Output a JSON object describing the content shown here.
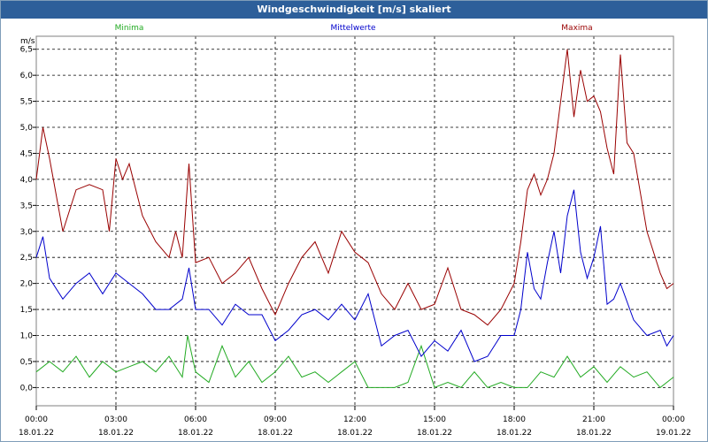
{
  "window": {
    "title": "Windgeschwindigkeit [m/s] skaliert"
  },
  "legend": {
    "min_label": "Minima",
    "mean_label": "Mittelwerte",
    "max_label": "Maxima"
  },
  "colors": {
    "min": "#22aa22",
    "mean": "#0000cc",
    "max": "#990000",
    "grid": "#000000",
    "frame": "#7f9db9",
    "title_bg": "#2d5f9a"
  },
  "chart_data": {
    "type": "line",
    "title": "Windgeschwindigkeit [m/s] skaliert",
    "ylabel": "m/s",
    "xlabel": "",
    "ylim": [
      -0.35,
      6.75
    ],
    "xlim": [
      0,
      24
    ],
    "yticks": [
      "0,0",
      "0,5",
      "1,0",
      "1,5",
      "2,0",
      "2,5",
      "3,0",
      "3,5",
      "4,0",
      "4,5",
      "5,0",
      "5,5",
      "6,0",
      "6,5"
    ],
    "ytick_values": [
      0,
      0.5,
      1,
      1.5,
      2,
      2.5,
      3,
      3.5,
      4,
      4.5,
      5,
      5.5,
      6,
      6.5
    ],
    "xticks_time": [
      "00:00",
      "03:00",
      "06:00",
      "09:00",
      "12:00",
      "15:00",
      "18:00",
      "21:00",
      "00:00"
    ],
    "xticks_date": [
      "18.01.22",
      "18.01.22",
      "18.01.22",
      "18.01.22",
      "18.01.22",
      "18.01.22",
      "18.01.22",
      "18.01.22",
      "19.01.22"
    ],
    "grid": true,
    "legend_position": "top",
    "series": [
      {
        "name": "Minima",
        "color": "#22aa22",
        "x": [
          0,
          0.5,
          1,
          1.5,
          2,
          2.5,
          3,
          3.5,
          4,
          4.5,
          5,
          5.5,
          5.7,
          6,
          6.5,
          7,
          7.5,
          8,
          8.5,
          9,
          9.5,
          10,
          10.5,
          11,
          11.5,
          12,
          12.5,
          13,
          13.5,
          14,
          14.5,
          15,
          15.5,
          16,
          16.5,
          17,
          17.5,
          18,
          18.5,
          19,
          19.5,
          20,
          20.5,
          21,
          21.5,
          22,
          22.5,
          23,
          23.5,
          24
        ],
        "values": [
          0.3,
          0.5,
          0.3,
          0.6,
          0.2,
          0.5,
          0.3,
          0.4,
          0.5,
          0.3,
          0.6,
          0.2,
          1.0,
          0.3,
          0.1,
          0.8,
          0.2,
          0.5,
          0.1,
          0.3,
          0.6,
          0.2,
          0.3,
          0.1,
          0.3,
          0.5,
          0.0,
          0.0,
          0.0,
          0.1,
          0.8,
          0.0,
          0.1,
          0.0,
          0.3,
          0.0,
          0.1,
          0.0,
          0.0,
          0.3,
          0.2,
          0.6,
          0.2,
          0.4,
          0.1,
          0.4,
          0.2,
          0.3,
          0.0,
          0.2
        ]
      },
      {
        "name": "Mittelwerte",
        "color": "#0000cc",
        "x": [
          0,
          0.25,
          0.5,
          1,
          1.5,
          2,
          2.5,
          3,
          3.5,
          4,
          4.5,
          5,
          5.5,
          5.75,
          6,
          6.5,
          7,
          7.5,
          8,
          8.5,
          9,
          9.5,
          10,
          10.5,
          11,
          11.5,
          12,
          12.5,
          13,
          13.5,
          14,
          14.5,
          15,
          15.5,
          16,
          16.5,
          17,
          17.5,
          18,
          18.25,
          18.5,
          18.75,
          19,
          19.25,
          19.5,
          19.75,
          20,
          20.25,
          20.5,
          20.75,
          21,
          21.25,
          21.5,
          21.75,
          22,
          22.5,
          23,
          23.5,
          23.75,
          24
        ],
        "values": [
          2.5,
          2.9,
          2.1,
          1.7,
          2.0,
          2.2,
          1.8,
          2.2,
          2.0,
          1.8,
          1.5,
          1.5,
          1.7,
          2.3,
          1.5,
          1.5,
          1.2,
          1.6,
          1.4,
          1.4,
          0.9,
          1.1,
          1.4,
          1.5,
          1.3,
          1.6,
          1.3,
          1.8,
          0.8,
          1.0,
          1.1,
          0.6,
          0.9,
          0.7,
          1.1,
          0.5,
          0.6,
          1.0,
          1.0,
          1.5,
          2.6,
          1.9,
          1.7,
          2.4,
          3.0,
          2.2,
          3.3,
          3.8,
          2.6,
          2.1,
          2.5,
          3.1,
          1.6,
          1.7,
          2.0,
          1.3,
          1.0,
          1.1,
          0.8,
          1.0
        ]
      },
      {
        "name": "Maxima",
        "color": "#990000",
        "x": [
          0,
          0.25,
          0.5,
          1,
          1.5,
          2,
          2.5,
          2.75,
          3,
          3.25,
          3.5,
          4,
          4.5,
          5,
          5.25,
          5.5,
          5.75,
          6,
          6.5,
          7,
          7.5,
          8,
          8.5,
          9,
          9.5,
          10,
          10.5,
          11,
          11.5,
          12,
          12.5,
          13,
          13.5,
          14,
          14.5,
          15,
          15.5,
          16,
          16.5,
          17,
          17.5,
          18,
          18.25,
          18.5,
          18.75,
          19,
          19.25,
          19.5,
          19.75,
          20,
          20.25,
          20.5,
          20.75,
          21,
          21.25,
          21.5,
          21.75,
          22,
          22.25,
          22.5,
          23,
          23.5,
          23.75,
          24
        ],
        "values": [
          4.0,
          5.0,
          4.4,
          3.0,
          3.8,
          3.9,
          3.8,
          3.0,
          4.4,
          4.0,
          4.3,
          3.3,
          2.8,
          2.5,
          3.0,
          2.5,
          4.3,
          2.4,
          2.5,
          2.0,
          2.2,
          2.5,
          1.9,
          1.4,
          2.0,
          2.5,
          2.8,
          2.2,
          3.0,
          2.6,
          2.4,
          1.8,
          1.5,
          2.0,
          1.5,
          1.6,
          2.3,
          1.5,
          1.4,
          1.2,
          1.5,
          2.0,
          2.8,
          3.8,
          4.1,
          3.7,
          4.0,
          4.5,
          5.5,
          6.5,
          5.2,
          6.1,
          5.5,
          5.6,
          5.3,
          4.6,
          4.1,
          6.4,
          4.7,
          4.5,
          3.0,
          2.2,
          1.9,
          2.0
        ]
      }
    ]
  }
}
